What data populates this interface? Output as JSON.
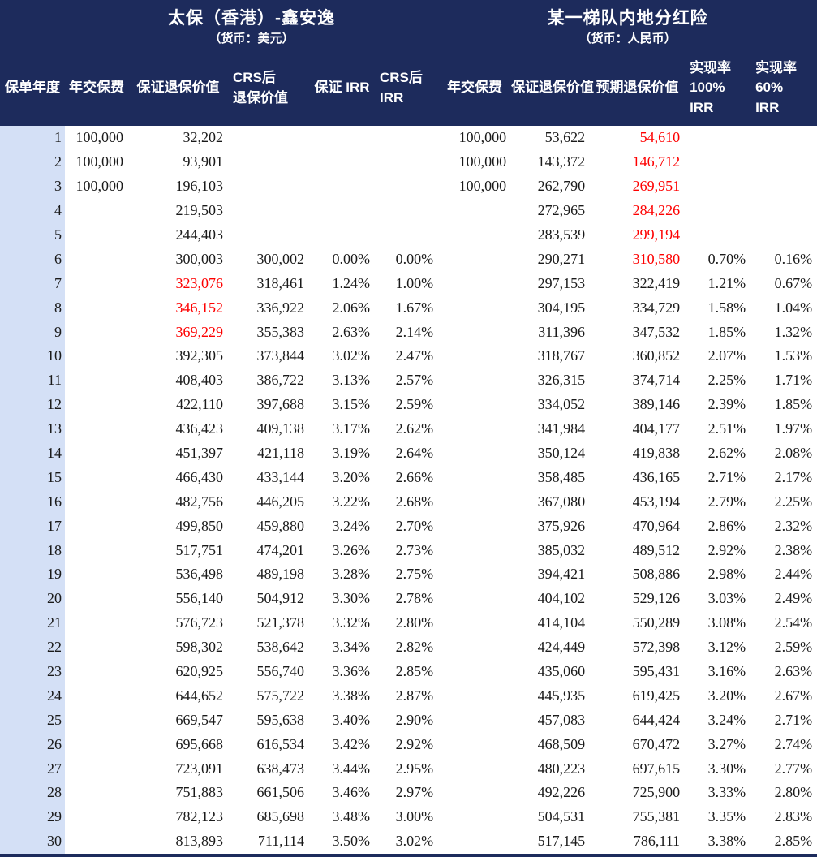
{
  "chart_data": {
    "type": "table",
    "products": [
      {
        "title": "太保（香港）-鑫安逸",
        "currency": "（货币：美元）"
      },
      {
        "title": "某一梯队内地分红险",
        "currency": "（货币：人民币）"
      }
    ],
    "columns": [
      {
        "lines": [
          "保单年度"
        ]
      },
      {
        "lines": [
          "年交保费"
        ]
      },
      {
        "lines": [
          "保证退保价值"
        ]
      },
      {
        "lines": [
          "CRS后",
          "退保价值"
        ]
      },
      {
        "lines": [
          "保证 IRR"
        ]
      },
      {
        "lines": [
          "CRS后",
          "IRR"
        ]
      },
      {
        "lines": [
          "年交保费"
        ]
      },
      {
        "lines": [
          "保证退保价值"
        ]
      },
      {
        "lines": [
          "预期退保价值"
        ]
      },
      {
        "lines": [
          "实现率",
          "100%",
          "IRR"
        ]
      },
      {
        "lines": [
          "实现率",
          "60%",
          "IRR"
        ]
      }
    ],
    "rows": [
      {
        "c": [
          "1",
          "100,000",
          "32,202",
          "",
          "",
          "",
          "100,000",
          "53,622",
          "54,610",
          "",
          ""
        ],
        "red": [
          8
        ]
      },
      {
        "c": [
          "2",
          "100,000",
          "93,901",
          "",
          "",
          "",
          "100,000",
          "143,372",
          "146,712",
          "",
          ""
        ],
        "red": [
          8
        ]
      },
      {
        "c": [
          "3",
          "100,000",
          "196,103",
          "",
          "",
          "",
          "100,000",
          "262,790",
          "269,951",
          "",
          ""
        ],
        "red": [
          8
        ]
      },
      {
        "c": [
          "4",
          "",
          "219,503",
          "",
          "",
          "",
          "",
          "272,965",
          "284,226",
          "",
          ""
        ],
        "red": [
          8
        ]
      },
      {
        "c": [
          "5",
          "",
          "244,403",
          "",
          "",
          "",
          "",
          "283,539",
          "299,194",
          "",
          ""
        ],
        "red": [
          8
        ]
      },
      {
        "c": [
          "6",
          "",
          "300,003",
          "300,002",
          "0.00%",
          "0.00%",
          "",
          "290,271",
          "310,580",
          "0.70%",
          "0.16%"
        ],
        "red": [
          8
        ]
      },
      {
        "c": [
          "7",
          "",
          "323,076",
          "318,461",
          "1.24%",
          "1.00%",
          "",
          "297,153",
          "322,419",
          "1.21%",
          "0.67%"
        ],
        "red": [
          2
        ]
      },
      {
        "c": [
          "8",
          "",
          "346,152",
          "336,922",
          "2.06%",
          "1.67%",
          "",
          "304,195",
          "334,729",
          "1.58%",
          "1.04%"
        ],
        "red": [
          2
        ]
      },
      {
        "c": [
          "9",
          "",
          "369,229",
          "355,383",
          "2.63%",
          "2.14%",
          "",
          "311,396",
          "347,532",
          "1.85%",
          "1.32%"
        ],
        "red": [
          2
        ]
      },
      {
        "c": [
          "10",
          "",
          "392,305",
          "373,844",
          "3.02%",
          "2.47%",
          "",
          "318,767",
          "360,852",
          "2.07%",
          "1.53%"
        ],
        "red": []
      },
      {
        "c": [
          "11",
          "",
          "408,403",
          "386,722",
          "3.13%",
          "2.57%",
          "",
          "326,315",
          "374,714",
          "2.25%",
          "1.71%"
        ],
        "red": []
      },
      {
        "c": [
          "12",
          "",
          "422,110",
          "397,688",
          "3.15%",
          "2.59%",
          "",
          "334,052",
          "389,146",
          "2.39%",
          "1.85%"
        ],
        "red": []
      },
      {
        "c": [
          "13",
          "",
          "436,423",
          "409,138",
          "3.17%",
          "2.62%",
          "",
          "341,984",
          "404,177",
          "2.51%",
          "1.97%"
        ],
        "red": []
      },
      {
        "c": [
          "14",
          "",
          "451,397",
          "421,118",
          "3.19%",
          "2.64%",
          "",
          "350,124",
          "419,838",
          "2.62%",
          "2.08%"
        ],
        "red": []
      },
      {
        "c": [
          "15",
          "",
          "466,430",
          "433,144",
          "3.20%",
          "2.66%",
          "",
          "358,485",
          "436,165",
          "2.71%",
          "2.17%"
        ],
        "red": []
      },
      {
        "c": [
          "16",
          "",
          "482,756",
          "446,205",
          "3.22%",
          "2.68%",
          "",
          "367,080",
          "453,194",
          "2.79%",
          "2.25%"
        ],
        "red": []
      },
      {
        "c": [
          "17",
          "",
          "499,850",
          "459,880",
          "3.24%",
          "2.70%",
          "",
          "375,926",
          "470,964",
          "2.86%",
          "2.32%"
        ],
        "red": []
      },
      {
        "c": [
          "18",
          "",
          "517,751",
          "474,201",
          "3.26%",
          "2.73%",
          "",
          "385,032",
          "489,512",
          "2.92%",
          "2.38%"
        ],
        "red": []
      },
      {
        "c": [
          "19",
          "",
          "536,498",
          "489,198",
          "3.28%",
          "2.75%",
          "",
          "394,421",
          "508,886",
          "2.98%",
          "2.44%"
        ],
        "red": []
      },
      {
        "c": [
          "20",
          "",
          "556,140",
          "504,912",
          "3.30%",
          "2.78%",
          "",
          "404,102",
          "529,126",
          "3.03%",
          "2.49%"
        ],
        "red": []
      },
      {
        "c": [
          "21",
          "",
          "576,723",
          "521,378",
          "3.32%",
          "2.80%",
          "",
          "414,104",
          "550,289",
          "3.08%",
          "2.54%"
        ],
        "red": []
      },
      {
        "c": [
          "22",
          "",
          "598,302",
          "538,642",
          "3.34%",
          "2.82%",
          "",
          "424,449",
          "572,398",
          "3.12%",
          "2.59%"
        ],
        "red": []
      },
      {
        "c": [
          "23",
          "",
          "620,925",
          "556,740",
          "3.36%",
          "2.85%",
          "",
          "435,060",
          "595,431",
          "3.16%",
          "2.63%"
        ],
        "red": []
      },
      {
        "c": [
          "24",
          "",
          "644,652",
          "575,722",
          "3.38%",
          "2.87%",
          "",
          "445,935",
          "619,425",
          "3.20%",
          "2.67%"
        ],
        "red": []
      },
      {
        "c": [
          "25",
          "",
          "669,547",
          "595,638",
          "3.40%",
          "2.90%",
          "",
          "457,083",
          "644,424",
          "3.24%",
          "2.71%"
        ],
        "red": []
      },
      {
        "c": [
          "26",
          "",
          "695,668",
          "616,534",
          "3.42%",
          "2.92%",
          "",
          "468,509",
          "670,472",
          "3.27%",
          "2.74%"
        ],
        "red": []
      },
      {
        "c": [
          "27",
          "",
          "723,091",
          "638,473",
          "3.44%",
          "2.95%",
          "",
          "480,223",
          "697,615",
          "3.30%",
          "2.77%"
        ],
        "red": []
      },
      {
        "c": [
          "28",
          "",
          "751,883",
          "661,506",
          "3.46%",
          "2.97%",
          "",
          "492,226",
          "725,900",
          "3.33%",
          "2.80%"
        ],
        "red": []
      },
      {
        "c": [
          "29",
          "",
          "782,123",
          "685,698",
          "3.48%",
          "3.00%",
          "",
          "504,531",
          "755,381",
          "3.35%",
          "2.83%"
        ],
        "red": []
      },
      {
        "c": [
          "30",
          "",
          "813,893",
          "711,114",
          "3.50%",
          "3.02%",
          "",
          "517,145",
          "786,111",
          "3.38%",
          "2.85%"
        ],
        "red": []
      }
    ]
  },
  "colors": {
    "header_bg": "#1d2b5c",
    "year_column_bg": "#d4e0f6",
    "highlight_red": "#fe0000",
    "body_text": "#1a1a1a",
    "header_text": "#ffffff"
  }
}
